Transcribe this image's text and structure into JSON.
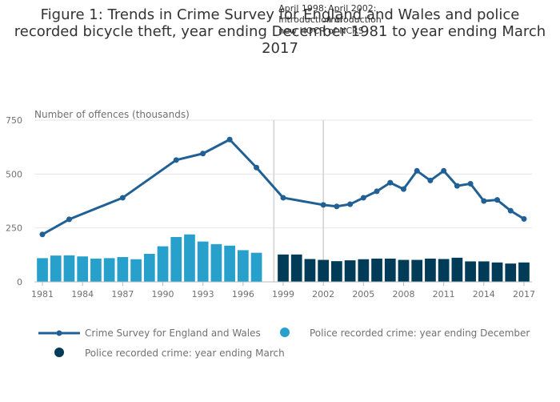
{
  "chart_data": {
    "type": "bar+line",
    "title": "Figure 1: Trends in Crime Survey for England and Wales and police recorded bicycle theft, year ending December 1981 to year ending March 2017",
    "title_lines": [
      "Figure 1: Trends in Crime Survey for England and Wales and police",
      "recorded bicycle theft, year ending December 1981 to year ending March",
      "2017"
    ],
    "ylabel": "Number of offences (thousands)",
    "ylim": [
      0,
      750
    ],
    "yticks": [
      0,
      250,
      500,
      750
    ],
    "xlim": [
      1980.4,
      2017.6
    ],
    "xticks": [
      1981,
      1984,
      1987,
      1990,
      1993,
      1996,
      1999,
      2002,
      2005,
      2008,
      2011,
      2014,
      2017
    ],
    "grid": true,
    "colors": {
      "csew": "#206095",
      "december": "#27a0cc",
      "march": "#003c57",
      "grid": "#e6e6e6",
      "axis": "#bbbbbb",
      "annotation_line": "#d0d0d0"
    },
    "series": [
      {
        "name": "Crime Survey for England and Wales",
        "kind": "line",
        "x": [
          1981,
          1983,
          1987,
          1991,
          1993,
          1995,
          1997,
          1999,
          2002,
          2003,
          2004,
          2005,
          2006,
          2007,
          2008,
          2009,
          2010,
          2011,
          2012,
          2013,
          2014,
          2015,
          2016,
          2017
        ],
        "values": [
          220,
          290,
          390,
          565,
          595,
          660,
          530,
          390,
          357,
          350,
          360,
          390,
          420,
          460,
          430,
          515,
          470,
          515,
          445,
          455,
          375,
          380,
          330,
          292
        ]
      },
      {
        "name": "Police recorded crime: year ending December",
        "kind": "bar",
        "x": [
          1981,
          1982,
          1983,
          1984,
          1985,
          1986,
          1987,
          1988,
          1989,
          1990,
          1991,
          1992,
          1993,
          1994,
          1995,
          1996,
          1997
        ],
        "values": [
          110,
          122,
          123,
          118,
          108,
          110,
          115,
          105,
          130,
          165,
          208,
          220,
          187,
          175,
          168,
          147,
          135
        ]
      },
      {
        "name": "Police recorded crime: year ending March",
        "kind": "bar",
        "x": [
          1999,
          2000,
          2001,
          2002,
          2003,
          2004,
          2005,
          2006,
          2007,
          2008,
          2009,
          2010,
          2011,
          2012,
          2013,
          2014,
          2015,
          2016,
          2017
        ],
        "values": [
          127,
          127,
          106,
          102,
          96,
          100,
          105,
          108,
          108,
          102,
          102,
          108,
          106,
          112,
          95,
          95,
          90,
          85,
          90
        ]
      }
    ],
    "annotations": [
      {
        "x": 1998.3,
        "lines": [
          "April 1998:",
          "Introduction of",
          "new HOCR"
        ]
      },
      {
        "x": 2002.0,
        "lines": [
          "April 2002:",
          "Introduction",
          "of NCRS"
        ]
      }
    ]
  }
}
